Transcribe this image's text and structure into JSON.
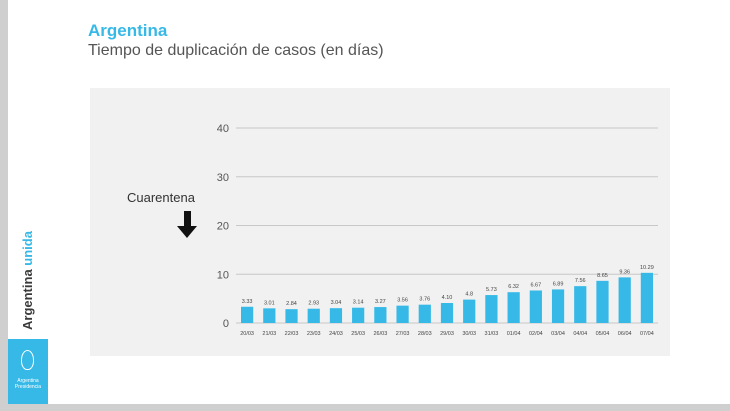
{
  "title": "Argentina",
  "subtitle": "Tiempo de duplicación de casos (en días)",
  "annotation": "Cuarentena",
  "sidebar": {
    "brand_main": "Argentina",
    "brand_accent": "unida",
    "logo_line1": "Argentina",
    "logo_line2": "Presidencia",
    "logo_icon": "national-seal-icon"
  },
  "colors": {
    "accent": "#37b9e7",
    "bar": "#37b9e7",
    "text": "#555555"
  },
  "chart_data": {
    "type": "bar",
    "title": "",
    "xlabel": "",
    "ylabel": "",
    "ylim": [
      0,
      40
    ],
    "yticks": [
      0,
      10,
      20,
      30,
      40
    ],
    "grid": true,
    "categories": [
      "20/03",
      "21/03",
      "22/03",
      "23/03",
      "24/03",
      "25/03",
      "26/03",
      "27/03",
      "28/03",
      "29/03",
      "30/03",
      "31/03",
      "01/04",
      "02/04",
      "03/04",
      "04/04",
      "05/04",
      "06/04",
      "07/04"
    ],
    "values": [
      3.33,
      3.01,
      2.84,
      2.93,
      3.04,
      3.14,
      3.27,
      3.56,
      3.76,
      4.1,
      4.8,
      5.73,
      6.32,
      6.67,
      6.89,
      7.56,
      8.65,
      9.36,
      10.29
    ],
    "value_labels": [
      "3.33",
      "3.01",
      "2.84",
      "2.93",
      "3.04",
      "3.14",
      "3.27",
      "3.56",
      "3.76",
      "4.10",
      "4.8",
      "5.73",
      "6.32",
      "6.67",
      "6.89",
      "7.56",
      "8.65",
      "9.36",
      "10.29"
    ]
  }
}
